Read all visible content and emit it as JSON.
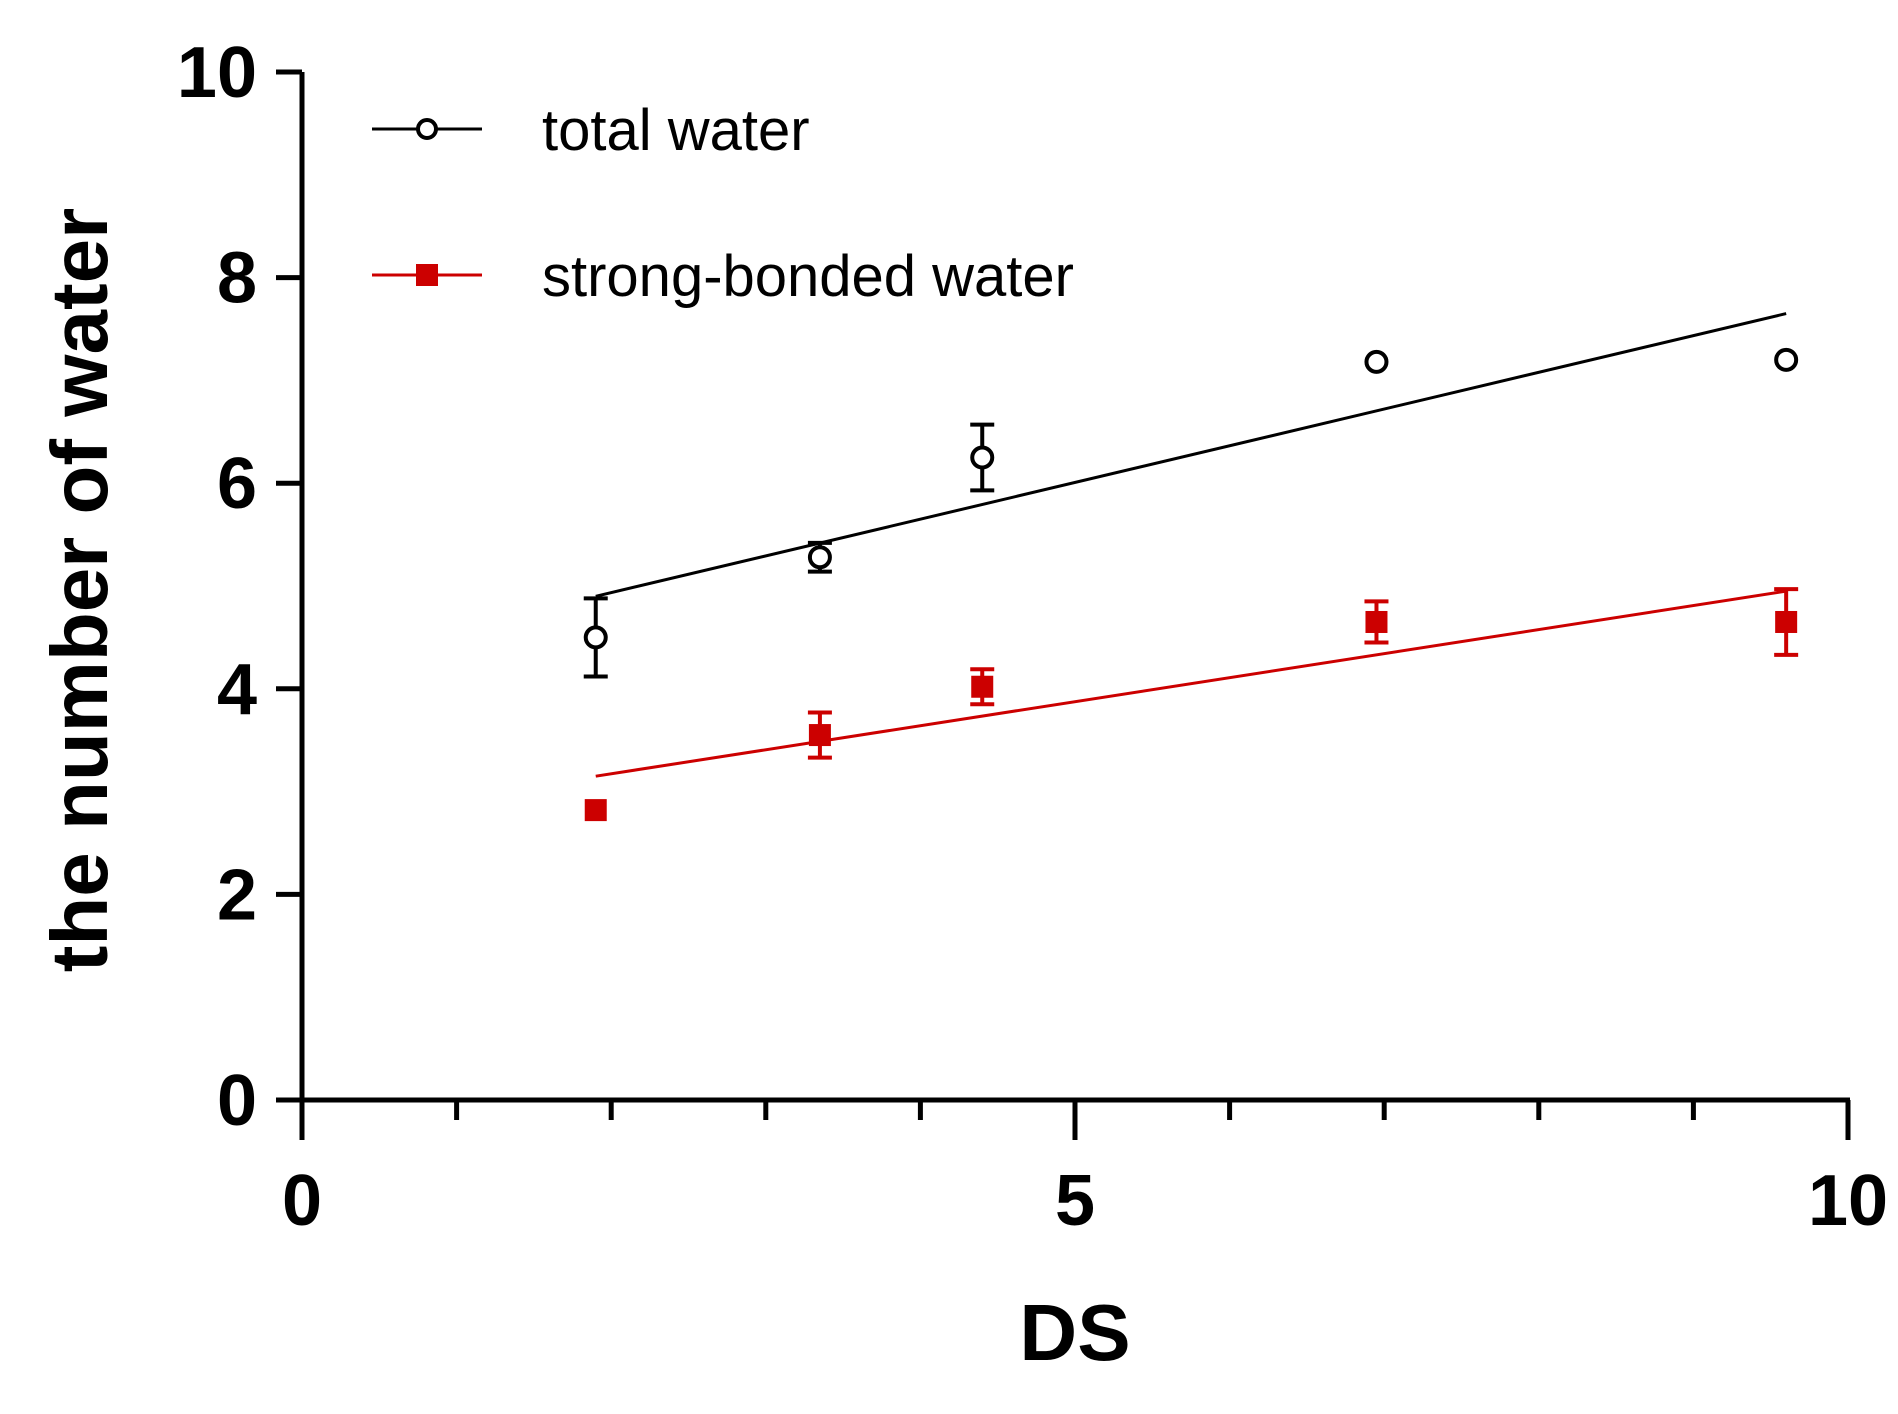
{
  "chart_data": {
    "type": "scatter",
    "title": "",
    "xlabel": "DS",
    "ylabel": "the number of water",
    "xlim": [
      0,
      10
    ],
    "ylim": [
      0,
      10
    ],
    "x_major_ticks": [
      0,
      5,
      10
    ],
    "x_minor_ticks": [
      1,
      2,
      3,
      4,
      6,
      7,
      8,
      9
    ],
    "y_ticks": [
      0,
      2,
      4,
      6,
      8,
      10
    ],
    "grid": false,
    "legend_position": "top-left",
    "series": [
      {
        "name": "total water",
        "color": "#000000",
        "marker": "open-circle",
        "points": [
          {
            "x": 1.9,
            "y": 4.5,
            "err": 0.38
          },
          {
            "x": 3.35,
            "y": 5.28,
            "err": 0.14
          },
          {
            "x": 4.4,
            "y": 6.25,
            "err": 0.32
          },
          {
            "x": 6.95,
            "y": 7.18,
            "err": 0
          },
          {
            "x": 9.6,
            "y": 7.2,
            "err": 0
          }
        ],
        "fit": {
          "x_start": 1.9,
          "y_start": 4.9,
          "x_end": 9.6,
          "y_end": 7.65
        }
      },
      {
        "name": "strong-bonded water",
        "color": "#cc0000",
        "marker": "filled-square",
        "points": [
          {
            "x": 1.9,
            "y": 2.82,
            "err": 0
          },
          {
            "x": 3.35,
            "y": 3.55,
            "err": 0.22
          },
          {
            "x": 4.4,
            "y": 4.02,
            "err": 0.17
          },
          {
            "x": 6.95,
            "y": 4.65,
            "err": 0.2
          },
          {
            "x": 9.6,
            "y": 4.65,
            "err": 0.32
          }
        ],
        "fit": {
          "x_start": 1.9,
          "y_start": 3.15,
          "x_end": 9.6,
          "y_end": 4.95
        }
      }
    ]
  }
}
